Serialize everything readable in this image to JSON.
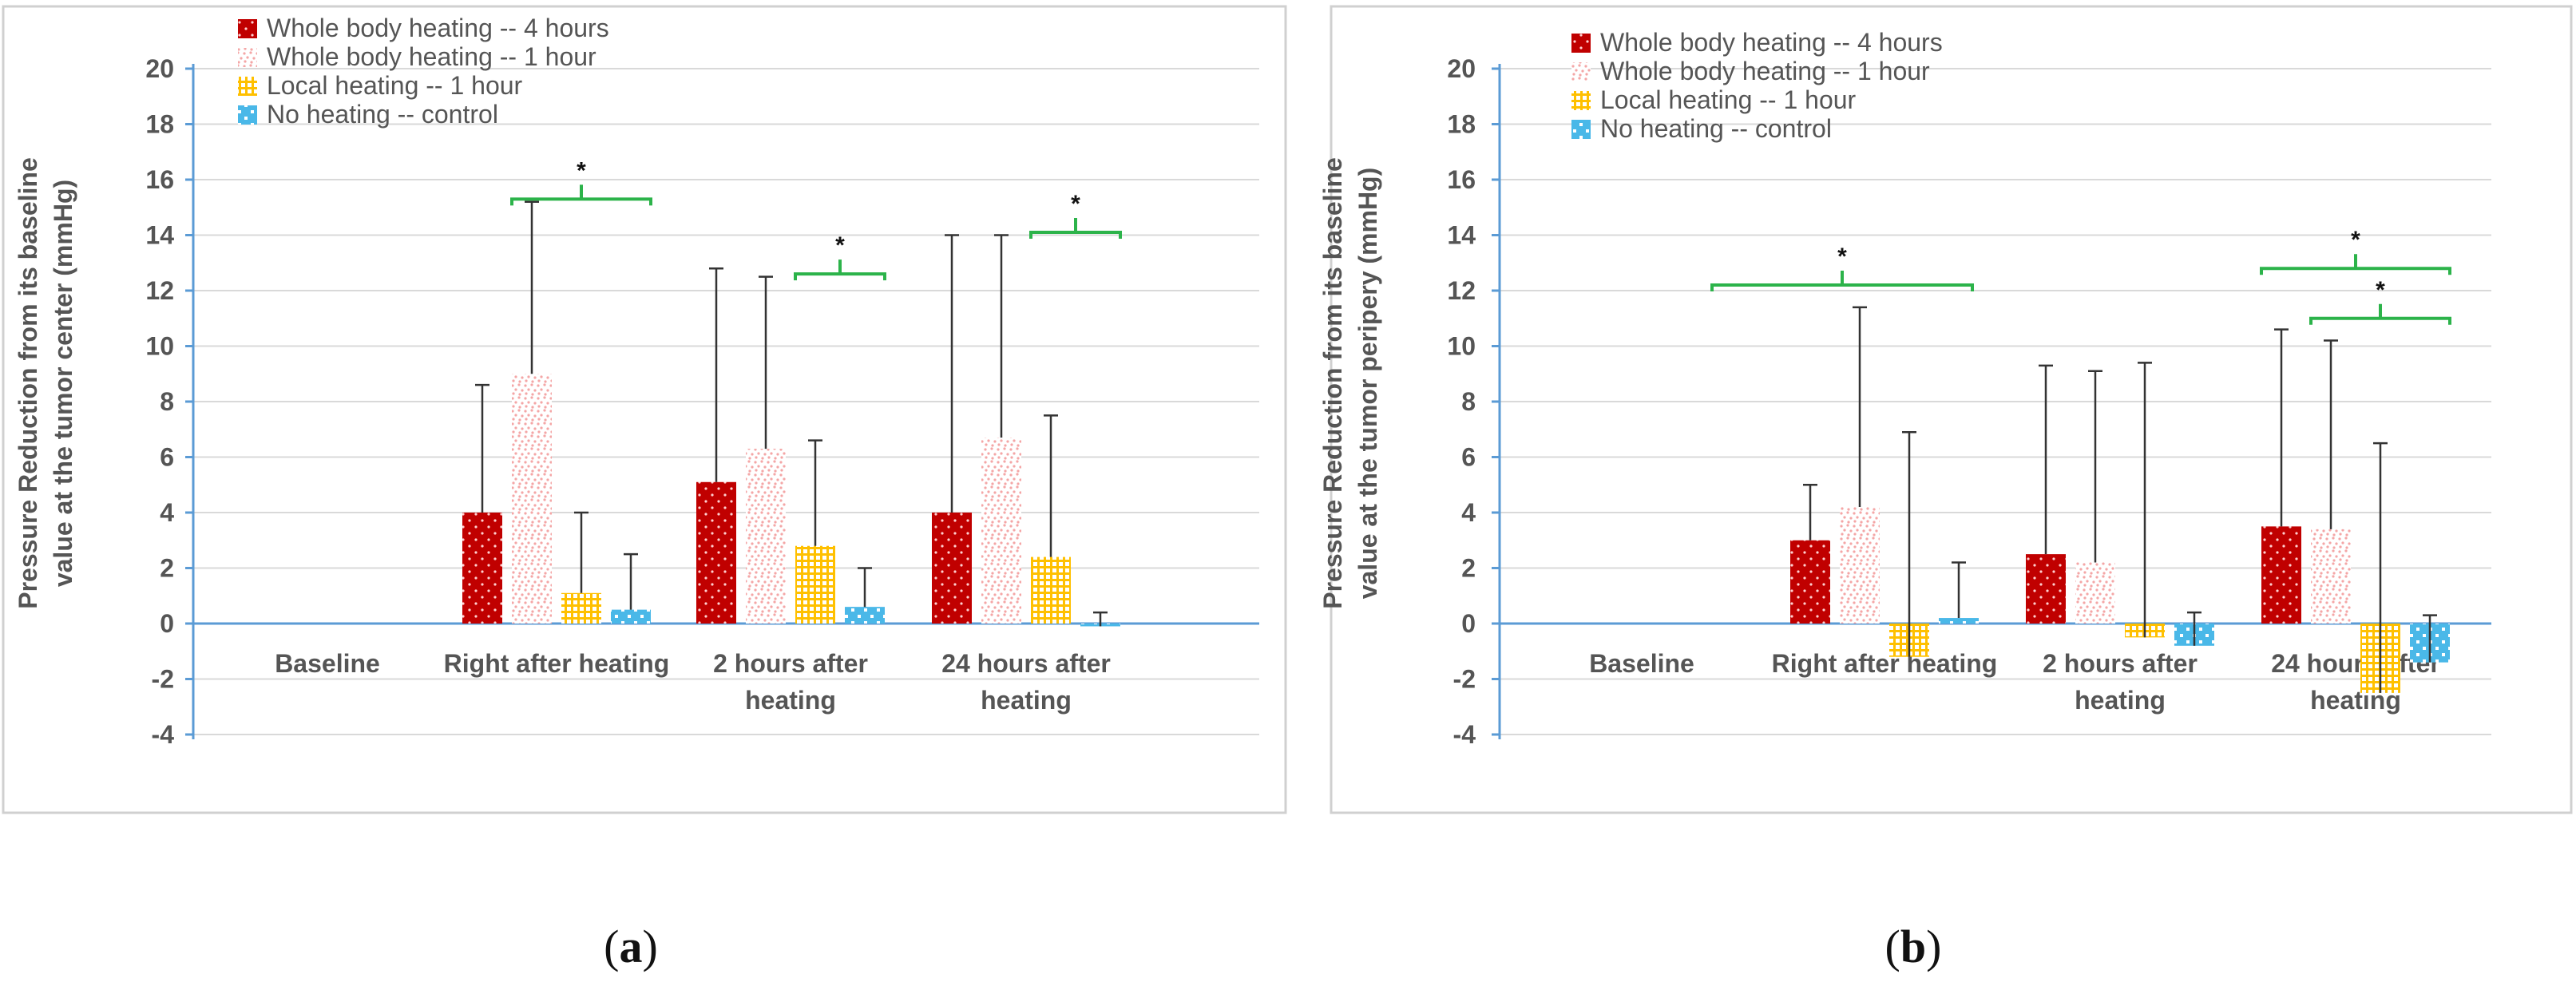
{
  "chart_data": [
    {
      "type": "bar",
      "panel_label": "(a)",
      "ylabel": "Pressure  Reduction from its baseline value at the tumor center (mmHg)",
      "ylim": [
        -4,
        20
      ],
      "yticks": [
        "20",
        "18",
        "16",
        "14",
        "12",
        "10",
        "8",
        "6",
        "4",
        "2",
        "0",
        "-2",
        "-4"
      ],
      "categories": [
        "Baseline",
        "Right after heating",
        "2 hours after heating",
        "24 hours after heating"
      ],
      "series": [
        {
          "name": "Whole body heating -- 4 hours",
          "values": [
            null,
            4.0,
            5.1,
            4.0
          ],
          "errors": [
            null,
            4.6,
            7.7,
            10.0
          ]
        },
        {
          "name": "Whole body heating -- 1 hour",
          "values": [
            null,
            9.0,
            6.3,
            6.7
          ],
          "errors": [
            null,
            6.2,
            6.2,
            7.3
          ]
        },
        {
          "name": "Local heating -- 1 hour",
          "values": [
            null,
            1.1,
            2.8,
            2.4
          ],
          "errors": [
            null,
            2.9,
            3.8,
            5.1
          ]
        },
        {
          "name": "No heating -- control",
          "values": [
            null,
            0.5,
            0.6,
            -0.1
          ],
          "errors": [
            null,
            2.0,
            1.4,
            0.5
          ]
        }
      ],
      "significance": [
        {
          "label": "*",
          "category": 1,
          "from_series": 1,
          "to_series": 3,
          "value": 15.3
        },
        {
          "label": "*",
          "category": 2,
          "from_series": 2,
          "to_series": 3,
          "value": 12.6
        },
        {
          "label": "*",
          "category": 3,
          "from_series": 2,
          "to_series": 3,
          "value": 14.1
        }
      ]
    },
    {
      "type": "bar",
      "panel_label": "(b)",
      "ylabel": "Pressure  Reduction from its baseline value at the tumor peripery (mmHg)",
      "ylim": [
        -4,
        20
      ],
      "yticks": [
        "20",
        "18",
        "16",
        "14",
        "12",
        "10",
        "8",
        "6",
        "4",
        "2",
        "0",
        "-2",
        "-4"
      ],
      "categories": [
        "Baseline",
        "Right after heating",
        "2 hours after heating",
        "24 hours after heating"
      ],
      "series": [
        {
          "name": "Whole body heating -- 4 hours",
          "values": [
            null,
            3.0,
            2.5,
            3.5
          ],
          "errors": [
            null,
            2.0,
            6.8,
            7.1
          ]
        },
        {
          "name": "Whole body heating -- 1 hour",
          "values": [
            null,
            4.2,
            2.2,
            3.4
          ],
          "errors": [
            null,
            7.2,
            6.9,
            6.8
          ]
        },
        {
          "name": "Local heating -- 1 hour",
          "values": [
            null,
            -1.2,
            -0.5,
            -2.5
          ],
          "errors": [
            null,
            8.1,
            9.9,
            9.0
          ]
        },
        {
          "name": "No heating -- control",
          "values": [
            null,
            0.2,
            -0.8,
            -1.4
          ],
          "errors": [
            null,
            2.0,
            1.2,
            1.7
          ]
        }
      ],
      "significance": [
        {
          "label": "*",
          "category": 0,
          "from_series": 3,
          "to_series": 3,
          "value": 12.2,
          "span": "cat1-bracket"
        },
        {
          "label": "*",
          "category": 3,
          "from_series": 0,
          "to_series": 3,
          "value": 12.8
        },
        {
          "label": "*",
          "category": 3,
          "from_series": 1,
          "to_series": 3,
          "value": 11.0
        }
      ]
    }
  ],
  "colors": {
    "axis": "#5b9bd5",
    "grid": "#d9d9d9",
    "bracket": "#2cb34a",
    "error": "#333333",
    "series": [
      "#c00000",
      "#f4a6a6",
      "#ffc000",
      "#4ab8e8"
    ]
  }
}
